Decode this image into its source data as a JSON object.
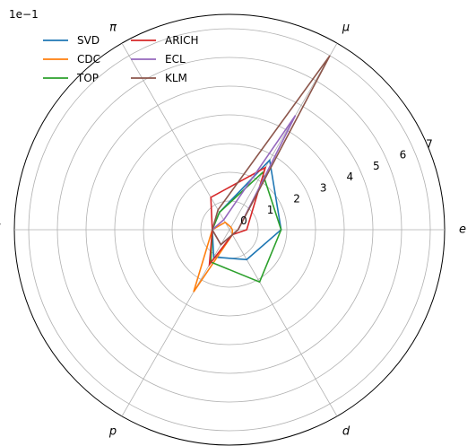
{
  "chart_data": {
    "type": "radar",
    "scale_note": "1e−1",
    "axes": [
      "e",
      "μ",
      "π",
      "K",
      "p",
      "d"
    ],
    "rmax": 7.5,
    "radial_ticks": [
      0,
      1,
      2,
      3,
      4,
      5,
      6,
      7
    ],
    "grid": true,
    "legend_position": "top-left",
    "series": [
      {
        "name": "SVD",
        "color": "#1f77b4",
        "values": [
          1.8,
          2.8,
          0.7,
          0.6,
          1.1,
          1.2
        ]
      },
      {
        "name": "CDC",
        "color": "#ff7f0e",
        "values": [
          0.1,
          0.1,
          0.3,
          0.6,
          2.5,
          0.2
        ]
      },
      {
        "name": "TOP",
        "color": "#2ca02c",
        "values": [
          1.8,
          2.3,
          0.7,
          0.6,
          1.3,
          2.1
        ]
      },
      {
        "name": "ARICH",
        "color": "#d62728",
        "values": [
          0.6,
          2.5,
          1.3,
          0.6,
          1.4,
          0.2
        ]
      },
      {
        "name": "ECL",
        "color": "#9467bd",
        "values": [
          0.3,
          4.6,
          0.4,
          0.6,
          0.6,
          0.2
        ]
      },
      {
        "name": "KLM",
        "color": "#8c564b",
        "values": [
          0.3,
          7.0,
          0.8,
          0.6,
          0.6,
          0.2
        ]
      }
    ]
  }
}
